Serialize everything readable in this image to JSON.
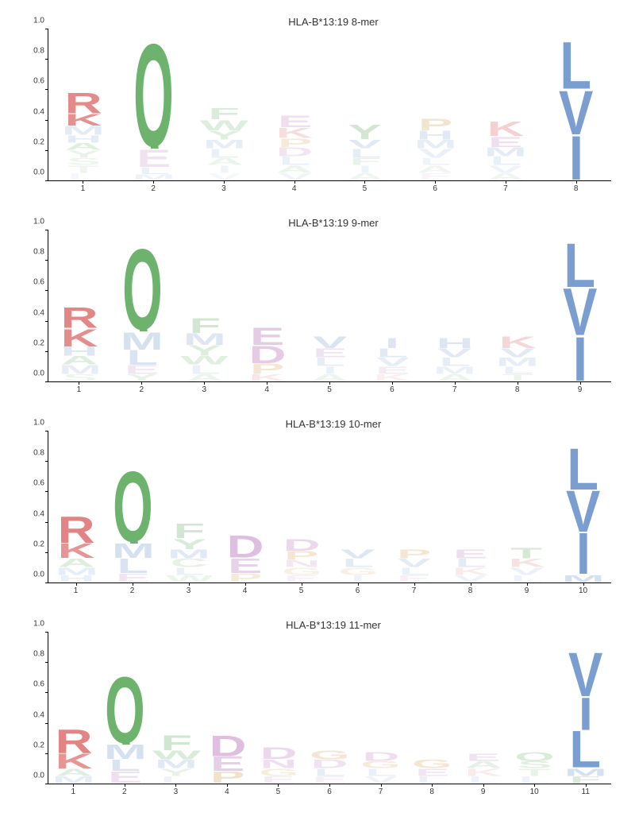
{
  "aa_colors": {
    "A": "#6db36d",
    "C": "#6db36d",
    "D": "#c080c0",
    "E": "#c080c0",
    "F": "#6db36d",
    "G": "#d4a050",
    "H": "#7a9ecf",
    "I": "#7a9ecf",
    "K": "#e07a7a",
    "L": "#7a9ecf",
    "M": "#7a9ecf",
    "N": "#c080c0",
    "P": "#d4a050",
    "Q": "#6db36d",
    "R": "#e07a7a",
    "S": "#6db36d",
    "T": "#6db36d",
    "V": "#7a9ecf",
    "W": "#6db36d",
    "Y": "#6db36d"
  },
  "y_ticks": [
    0.0,
    0.2,
    0.4,
    0.6,
    0.8,
    1.0
  ],
  "background_color": "#ffffff",
  "title_fontsize": 13,
  "tick_fontsize": 10,
  "letter_font": "Arial, sans-serif",
  "panels": [
    {
      "title": "HLA-B*13:19 8-mer",
      "n_positions": 8,
      "columns": [
        [
          [
            "R",
            0.14,
            0.88
          ],
          [
            "K",
            0.08,
            0.82
          ],
          [
            "M",
            0.06,
            0.2
          ],
          [
            "H",
            0.05,
            0.2
          ],
          [
            "A",
            0.05,
            0.2
          ],
          [
            "Y",
            0.05,
            0.15
          ],
          [
            "S",
            0.05,
            0.12
          ],
          [
            "T",
            0.05,
            0.1
          ],
          [
            "L",
            0.05,
            0.08
          ]
        ],
        [
          [
            "Q",
            0.7,
            1.0
          ],
          [
            "E",
            0.12,
            0.22
          ],
          [
            "L",
            0.05,
            0.15
          ],
          [
            "M",
            0.04,
            0.12
          ]
        ],
        [
          [
            "F",
            0.08,
            0.25
          ],
          [
            "W",
            0.07,
            0.22
          ],
          [
            "Y",
            0.06,
            0.2
          ],
          [
            "M",
            0.06,
            0.18
          ],
          [
            "L",
            0.06,
            0.15
          ],
          [
            "A",
            0.05,
            0.12
          ],
          [
            "I",
            0.05,
            0.1
          ],
          [
            "V",
            0.05,
            0.08
          ]
        ],
        [
          [
            "E",
            0.08,
            0.25
          ],
          [
            "K",
            0.07,
            0.25
          ],
          [
            "P",
            0.06,
            0.22
          ],
          [
            "D",
            0.06,
            0.2
          ],
          [
            "L",
            0.06,
            0.15
          ],
          [
            "A",
            0.05,
            0.12
          ],
          [
            "V",
            0.05,
            0.1
          ]
        ],
        [
          [
            "Y",
            0.1,
            0.3
          ],
          [
            "V",
            0.06,
            0.22
          ],
          [
            "L",
            0.06,
            0.18
          ],
          [
            "F",
            0.05,
            0.15
          ],
          [
            "I",
            0.05,
            0.12
          ],
          [
            "A",
            0.05,
            0.1
          ]
        ],
        [
          [
            "P",
            0.08,
            0.28
          ],
          [
            "H",
            0.06,
            0.22
          ],
          [
            "M",
            0.06,
            0.18
          ],
          [
            "V",
            0.06,
            0.15
          ],
          [
            "L",
            0.05,
            0.12
          ],
          [
            "A",
            0.05,
            0.1
          ],
          [
            "E",
            0.05,
            0.08
          ]
        ],
        [
          [
            "K",
            0.1,
            0.35
          ],
          [
            "E",
            0.07,
            0.25
          ],
          [
            "M",
            0.06,
            0.2
          ],
          [
            "L",
            0.06,
            0.15
          ],
          [
            "V",
            0.05,
            0.12
          ],
          [
            "A",
            0.05,
            0.1
          ]
        ],
        [
          [
            "L",
            0.32,
            1.0
          ],
          [
            "V",
            0.3,
            1.0
          ],
          [
            "I",
            0.3,
            1.0
          ]
        ]
      ]
    },
    {
      "title": "HLA-B*13:19 9-mer",
      "n_positions": 9,
      "columns": [
        [
          [
            "R",
            0.14,
            0.9
          ],
          [
            "K",
            0.12,
            0.85
          ],
          [
            "H",
            0.06,
            0.25
          ],
          [
            "A",
            0.06,
            0.22
          ],
          [
            "M",
            0.06,
            0.18
          ],
          [
            "S",
            0.05,
            0.12
          ]
        ],
        [
          [
            "Q",
            0.55,
            1.0
          ],
          [
            "M",
            0.12,
            0.3
          ],
          [
            "L",
            0.1,
            0.28
          ],
          [
            "E",
            0.06,
            0.2
          ],
          [
            "Y",
            0.05,
            0.15
          ]
        ],
        [
          [
            "F",
            0.1,
            0.3
          ],
          [
            "M",
            0.08,
            0.25
          ],
          [
            "Y",
            0.07,
            0.22
          ],
          [
            "W",
            0.06,
            0.2
          ],
          [
            "L",
            0.06,
            0.15
          ],
          [
            "A",
            0.05,
            0.12
          ]
        ],
        [
          [
            "E",
            0.12,
            0.4
          ],
          [
            "D",
            0.12,
            0.4
          ],
          [
            "P",
            0.07,
            0.25
          ],
          [
            "K",
            0.05,
            0.18
          ]
        ],
        [
          [
            "V",
            0.08,
            0.28
          ],
          [
            "E",
            0.06,
            0.22
          ],
          [
            "L",
            0.06,
            0.18
          ],
          [
            "I",
            0.05,
            0.15
          ],
          [
            "A",
            0.05,
            0.12
          ]
        ],
        [
          [
            "I",
            0.07,
            0.25
          ],
          [
            "L",
            0.06,
            0.22
          ],
          [
            "V",
            0.06,
            0.18
          ],
          [
            "E",
            0.05,
            0.15
          ],
          [
            "K",
            0.05,
            0.12
          ]
        ],
        [
          [
            "H",
            0.07,
            0.25
          ],
          [
            "V",
            0.06,
            0.22
          ],
          [
            "L",
            0.06,
            0.18
          ],
          [
            "M",
            0.05,
            0.15
          ],
          [
            "A",
            0.05,
            0.12
          ]
        ],
        [
          [
            "K",
            0.08,
            0.3
          ],
          [
            "V",
            0.06,
            0.22
          ],
          [
            "M",
            0.06,
            0.18
          ],
          [
            "L",
            0.05,
            0.15
          ],
          [
            "T",
            0.05,
            0.12
          ]
        ],
        [
          [
            "L",
            0.3,
            1.0
          ],
          [
            "V",
            0.32,
            1.0
          ],
          [
            "I",
            0.3,
            1.0
          ]
        ]
      ]
    },
    {
      "title": "HLA-B*13:19 10-mer",
      "n_positions": 10,
      "columns": [
        [
          [
            "R",
            0.18,
            0.92
          ],
          [
            "K",
            0.1,
            0.8
          ],
          [
            "A",
            0.06,
            0.22
          ],
          [
            "M",
            0.05,
            0.18
          ],
          [
            "H",
            0.05,
            0.15
          ]
        ],
        [
          [
            "Q",
            0.48,
            1.0
          ],
          [
            "M",
            0.1,
            0.3
          ],
          [
            "L",
            0.1,
            0.28
          ],
          [
            "E",
            0.06,
            0.2
          ]
        ],
        [
          [
            "F",
            0.1,
            0.3
          ],
          [
            "Y",
            0.07,
            0.25
          ],
          [
            "M",
            0.06,
            0.22
          ],
          [
            "C",
            0.06,
            0.18
          ],
          [
            "L",
            0.05,
            0.15
          ],
          [
            "W",
            0.05,
            0.12
          ]
        ],
        [
          [
            "D",
            0.15,
            0.5
          ],
          [
            "E",
            0.1,
            0.35
          ],
          [
            "P",
            0.06,
            0.22
          ]
        ],
        [
          [
            "D",
            0.08,
            0.3
          ],
          [
            "P",
            0.06,
            0.25
          ],
          [
            "N",
            0.05,
            0.18
          ],
          [
            "G",
            0.05,
            0.15
          ],
          [
            "E",
            0.05,
            0.12
          ]
        ],
        [
          [
            "V",
            0.06,
            0.25
          ],
          [
            "L",
            0.06,
            0.2
          ],
          [
            "G",
            0.05,
            0.15
          ],
          [
            "I",
            0.05,
            0.12
          ]
        ],
        [
          [
            "P",
            0.06,
            0.25
          ],
          [
            "V",
            0.06,
            0.2
          ],
          [
            "L",
            0.05,
            0.15
          ],
          [
            "E",
            0.05,
            0.12
          ]
        ],
        [
          [
            "E",
            0.06,
            0.25
          ],
          [
            "L",
            0.06,
            0.2
          ],
          [
            "K",
            0.05,
            0.15
          ],
          [
            "V",
            0.05,
            0.12
          ]
        ],
        [
          [
            "T",
            0.07,
            0.28
          ],
          [
            "K",
            0.06,
            0.22
          ],
          [
            "V",
            0.05,
            0.15
          ],
          [
            "L",
            0.05,
            0.12
          ]
        ],
        [
          [
            "L",
            0.28,
            1.0
          ],
          [
            "V",
            0.28,
            1.0
          ],
          [
            "I",
            0.28,
            1.0
          ],
          [
            "M",
            0.05,
            0.3
          ]
        ]
      ]
    },
    {
      "title": "HLA-B*13:19 11-mer",
      "n_positions": 11,
      "columns": [
        [
          [
            "R",
            0.16,
            0.92
          ],
          [
            "K",
            0.1,
            0.8
          ],
          [
            "A",
            0.05,
            0.22
          ],
          [
            "M",
            0.05,
            0.18
          ]
        ],
        [
          [
            "Q",
            0.45,
            1.0
          ],
          [
            "M",
            0.1,
            0.3
          ],
          [
            "L",
            0.08,
            0.28
          ],
          [
            "E",
            0.08,
            0.25
          ]
        ],
        [
          [
            "F",
            0.1,
            0.32
          ],
          [
            "W",
            0.06,
            0.25
          ],
          [
            "M",
            0.06,
            0.22
          ],
          [
            "Y",
            0.05,
            0.15
          ],
          [
            "L",
            0.05,
            0.12
          ]
        ],
        [
          [
            "D",
            0.14,
            0.5
          ],
          [
            "E",
            0.1,
            0.38
          ],
          [
            "P",
            0.08,
            0.3
          ]
        ],
        [
          [
            "D",
            0.08,
            0.3
          ],
          [
            "N",
            0.06,
            0.25
          ],
          [
            "G",
            0.05,
            0.18
          ],
          [
            "E",
            0.05,
            0.15
          ]
        ],
        [
          [
            "G",
            0.06,
            0.25
          ],
          [
            "D",
            0.06,
            0.22
          ],
          [
            "L",
            0.05,
            0.18
          ],
          [
            "E",
            0.05,
            0.12
          ]
        ],
        [
          [
            "D",
            0.06,
            0.25
          ],
          [
            "G",
            0.05,
            0.2
          ],
          [
            "L",
            0.05,
            0.15
          ],
          [
            "V",
            0.05,
            0.12
          ]
        ],
        [
          [
            "G",
            0.06,
            0.25
          ],
          [
            "E",
            0.05,
            0.2
          ],
          [
            "L",
            0.05,
            0.15
          ]
        ],
        [
          [
            "E",
            0.05,
            0.22
          ],
          [
            "A",
            0.05,
            0.18
          ],
          [
            "K",
            0.05,
            0.15
          ],
          [
            "L",
            0.05,
            0.12
          ]
        ],
        [
          [
            "Q",
            0.06,
            0.25
          ],
          [
            "S",
            0.05,
            0.2
          ],
          [
            "T",
            0.05,
            0.15
          ],
          [
            "L",
            0.05,
            0.12
          ]
        ],
        [
          [
            "V",
            0.3,
            1.0
          ],
          [
            "I",
            0.22,
            1.0
          ],
          [
            "L",
            0.25,
            1.0
          ],
          [
            "M",
            0.05,
            0.3
          ],
          [
            "F",
            0.05,
            0.25
          ]
        ]
      ]
    }
  ]
}
